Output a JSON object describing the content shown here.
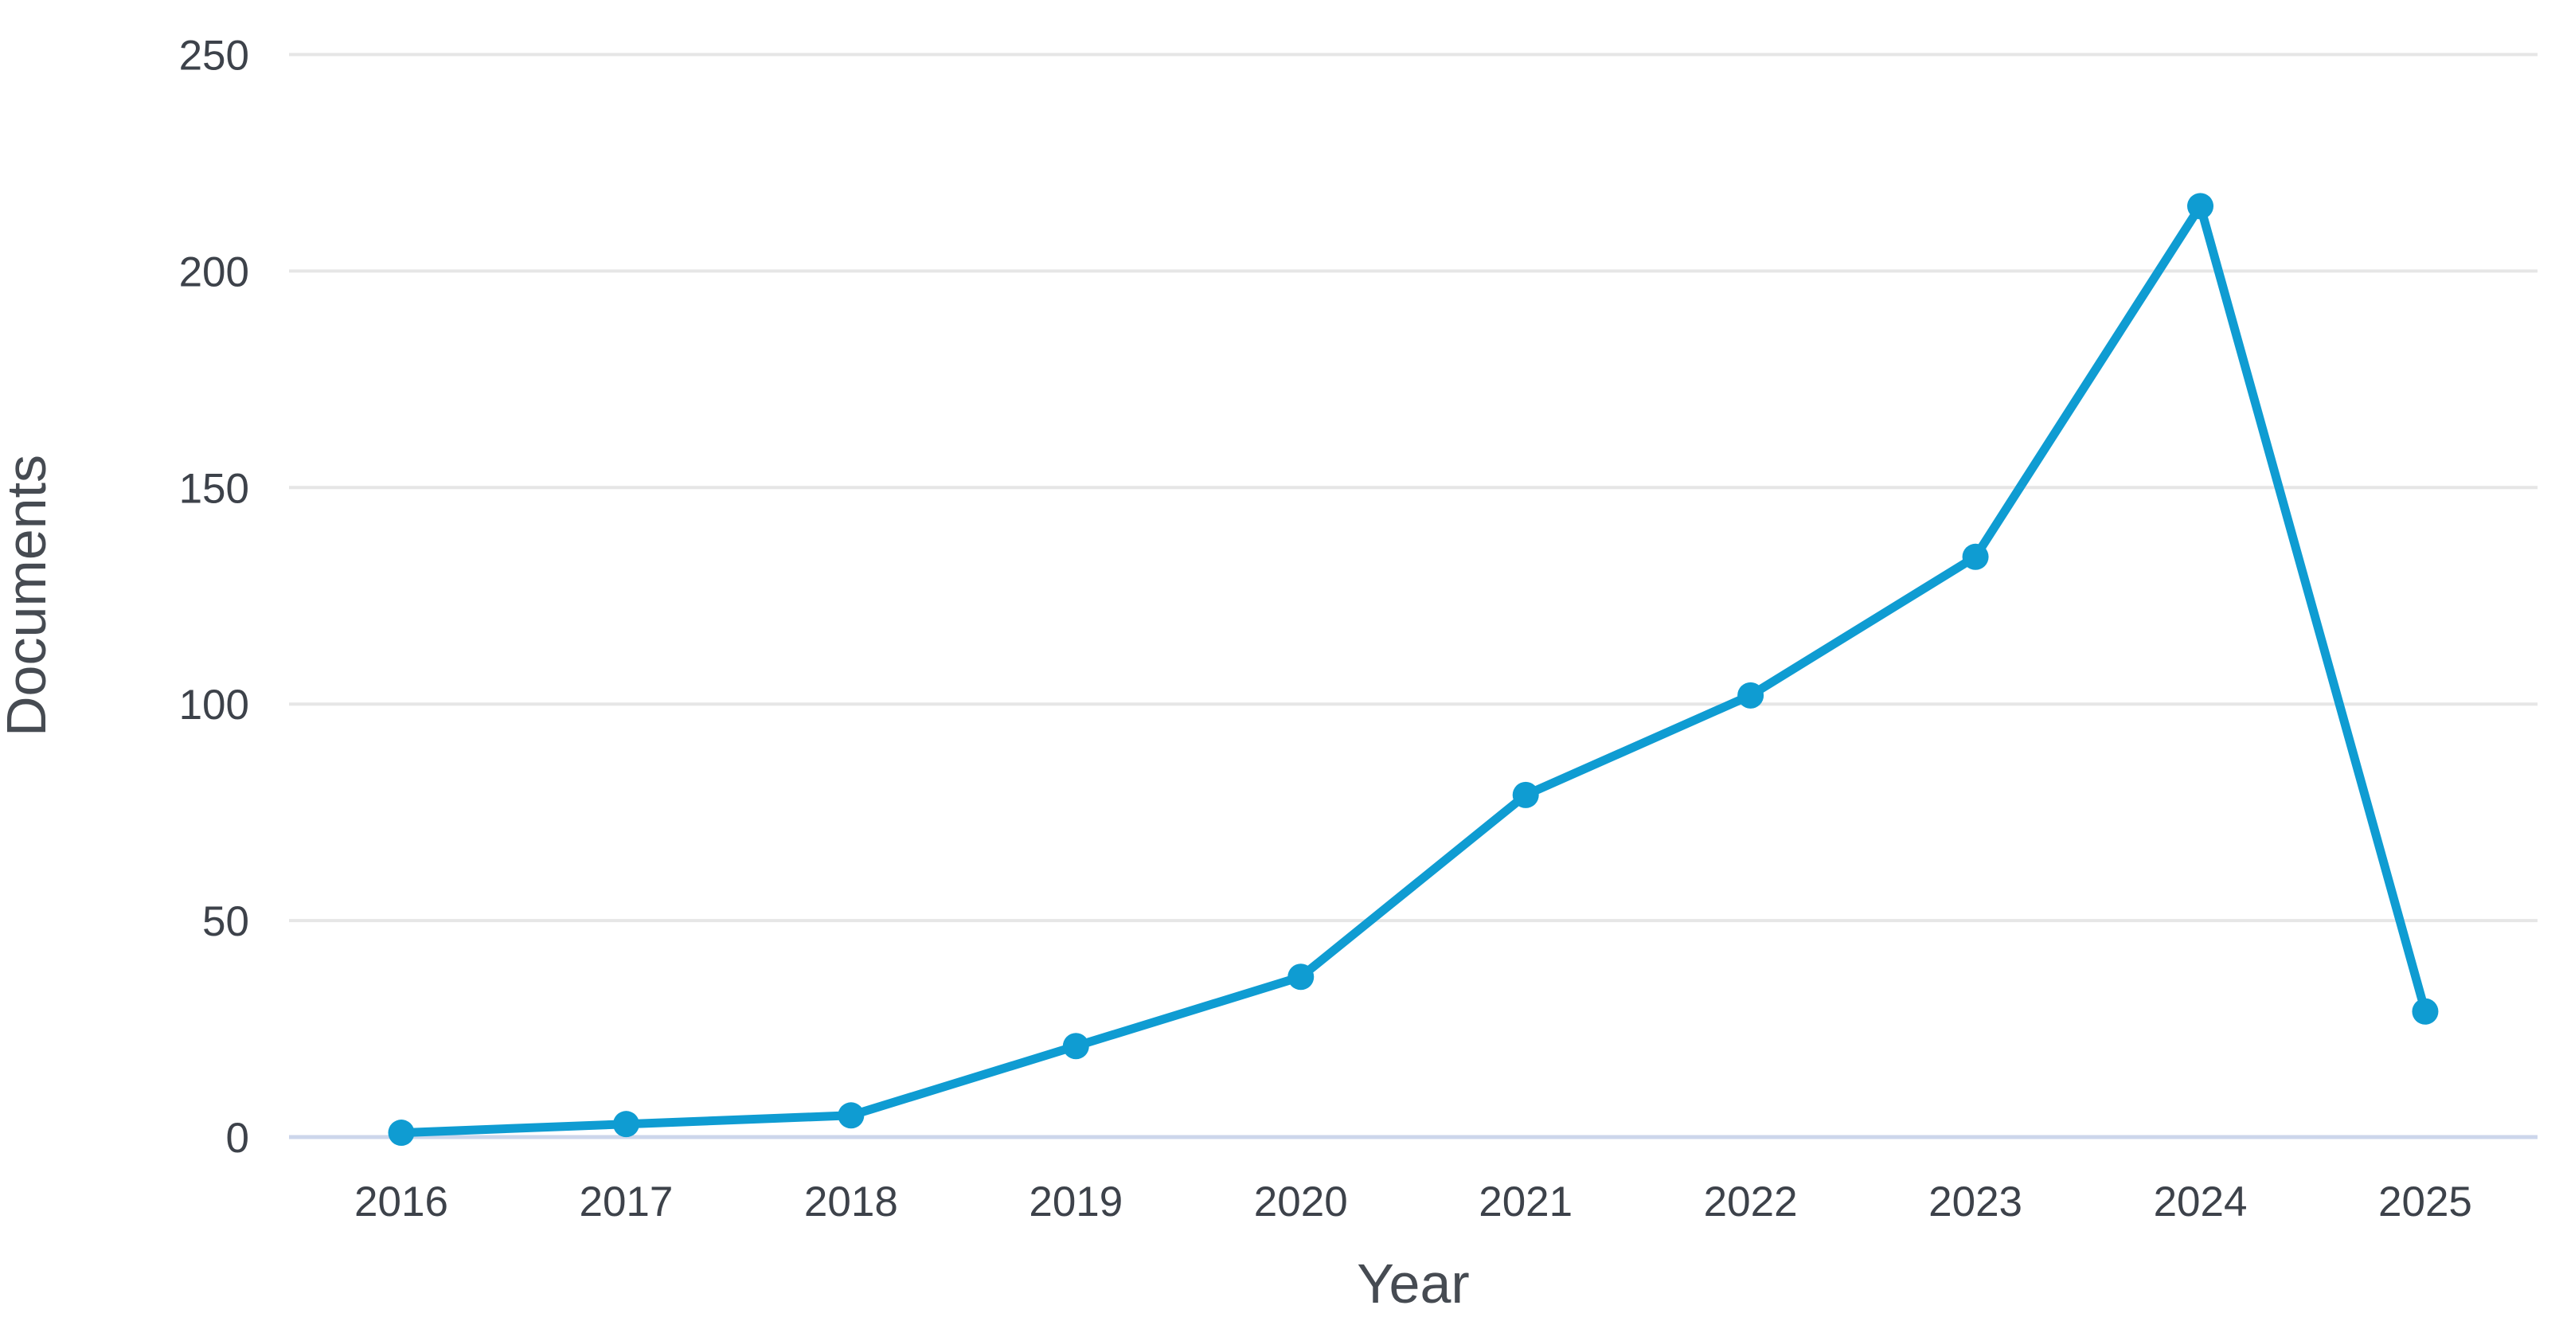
{
  "chart_data": {
    "type": "line",
    "title": "",
    "xlabel": "Year",
    "ylabel": "Documents",
    "categories": [
      "2016",
      "2017",
      "2018",
      "2019",
      "2020",
      "2021",
      "2022",
      "2023",
      "2024",
      "2025"
    ],
    "series": [
      {
        "name": "Documents",
        "values": [
          1,
          3,
          5,
          21,
          37,
          79,
          102,
          134,
          215,
          29
        ]
      }
    ],
    "ylim": [
      0,
      250
    ],
    "yticks": [
      0,
      50,
      100,
      150,
      200,
      250
    ],
    "grid": true,
    "legend_visible": false,
    "line_color": "#0f9cd2",
    "grid_color": "#e6e6e6",
    "axis_line_color": "#ccd6eb",
    "tick_label_color": "#3d424a",
    "axis_title_color": "#464b52",
    "background_color": "#ffffff"
  }
}
